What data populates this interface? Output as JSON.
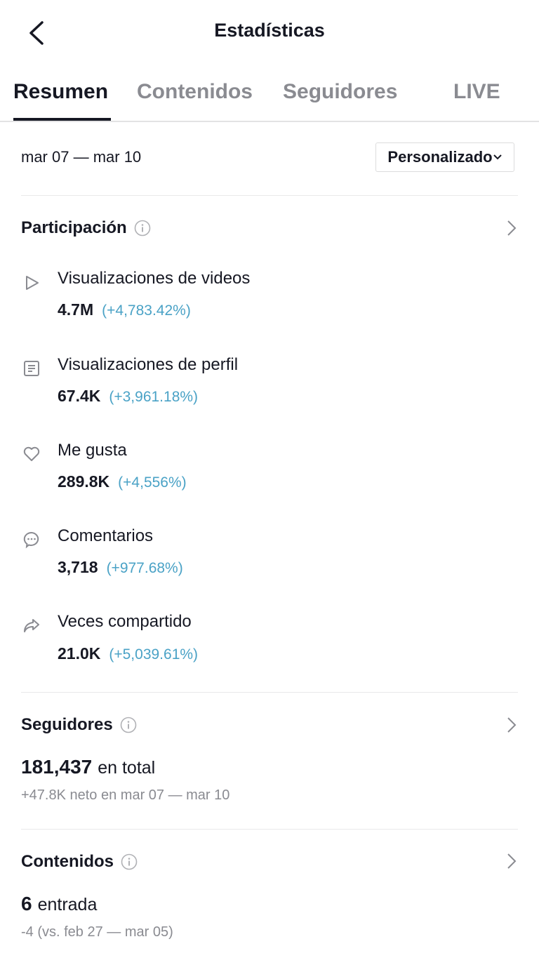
{
  "header": {
    "title": "Estadísticas"
  },
  "tabs": [
    {
      "label": "Resumen",
      "active": true
    },
    {
      "label": "Contenidos",
      "active": false
    },
    {
      "label": "Seguidores",
      "active": false
    },
    {
      "label": "LIVE",
      "active": false
    }
  ],
  "date_range": "mar 07 — mar 10",
  "period_dropdown": {
    "selected": "Personalizado"
  },
  "engagement": {
    "title": "Participación",
    "metrics": [
      {
        "icon": "play-icon",
        "label": "Visualizaciones de videos",
        "value": "4.7M",
        "change": "(+4,783.42%)"
      },
      {
        "icon": "profile-doc-icon",
        "label": "Visualizaciones de perfil",
        "value": "67.4K",
        "change": "(+3,961.18%)"
      },
      {
        "icon": "heart-icon",
        "label": "Me gusta",
        "value": "289.8K",
        "change": "(+4,556%)"
      },
      {
        "icon": "comment-icon",
        "label": "Comentarios",
        "value": "3,718",
        "change": "(+977.68%)"
      },
      {
        "icon": "share-icon",
        "label": "Veces compartido",
        "value": "21.0K",
        "change": "(+5,039.61%)"
      }
    ]
  },
  "followers": {
    "title": "Seguidores",
    "total": "181,437",
    "total_unit": "en total",
    "net": "+47.8K neto en mar 07 — mar 10"
  },
  "content": {
    "title": "Contenidos",
    "count": "6",
    "count_unit": "entrada",
    "comparison": "-4 (vs. feb 27 — mar 05)"
  },
  "colors": {
    "text": "#161823",
    "muted": "#8a8b91",
    "change": "#4aa2c6"
  }
}
